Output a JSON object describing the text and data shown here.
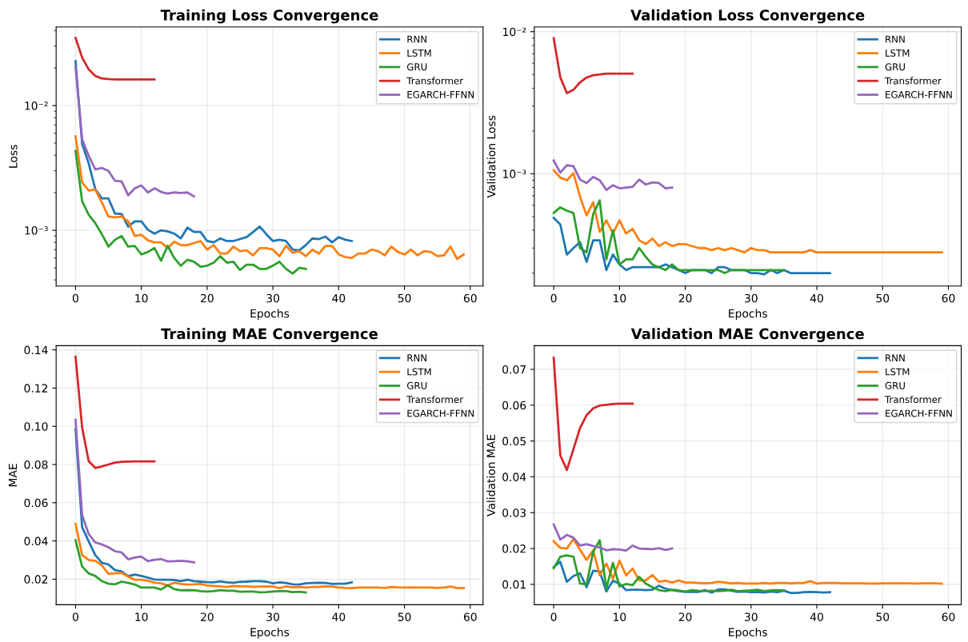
{
  "chart_data": [
    {
      "type": "line",
      "title": "Training Loss Convergence",
      "xlabel": "Epochs",
      "ylabel": "Loss",
      "log": true,
      "grid": true,
      "legend": "top right",
      "xlim": [
        -2.95,
        61.95
      ],
      "xticks": [
        0,
        10,
        20,
        30,
        40,
        50,
        60
      ],
      "ylim": [
        0.000357,
        0.0427
      ],
      "yticks": [
        {
          "value": 0.001,
          "label": "10⁻³"
        },
        {
          "value": 0.01,
          "label": "10⁻²"
        }
      ],
      "series": [
        {
          "name": "RNN",
          "color": "#1f77b4",
          "x": [
            0,
            1,
            2,
            3,
            4,
            5,
            6,
            7,
            8,
            9,
            10,
            11,
            12,
            13,
            14,
            15,
            16,
            17,
            18,
            19,
            20,
            21,
            22,
            23,
            24,
            25,
            26,
            27,
            28,
            29,
            30,
            31,
            32,
            33,
            34,
            35,
            36,
            37,
            38,
            39,
            40,
            41,
            42
          ],
          "values": [
            0.0227,
            0.00493,
            0.00344,
            0.00214,
            0.0018,
            0.0018,
            0.00136,
            0.00135,
            0.00107,
            0.00118,
            0.00118,
            0.00101,
            0.00094,
            0.001,
            0.00098,
            0.00094,
            0.00086,
            0.00105,
            0.00097,
            0.00097,
            0.00082,
            0.0008,
            0.00086,
            0.00082,
            0.00082,
            0.00085,
            0.00088,
            0.00097,
            0.00107,
            0.00093,
            0.00082,
            0.00084,
            0.00082,
            0.0007,
            0.00069,
            0.00076,
            0.00086,
            0.00085,
            0.00089,
            0.0008,
            0.00088,
            0.00084,
            0.00082
          ]
        },
        {
          "name": "LSTM",
          "color": "#ff7f0e",
          "x": [
            0,
            1,
            2,
            3,
            4,
            5,
            6,
            7,
            8,
            9,
            10,
            11,
            12,
            13,
            14,
            15,
            16,
            17,
            18,
            19,
            20,
            21,
            22,
            23,
            24,
            25,
            26,
            27,
            28,
            29,
            30,
            31,
            32,
            33,
            34,
            35,
            36,
            37,
            38,
            39,
            40,
            41,
            42,
            43,
            44,
            45,
            46,
            47,
            48,
            49,
            50,
            51,
            52,
            53,
            54,
            55,
            56,
            57,
            58,
            59
          ],
          "values": [
            0.00567,
            0.00242,
            0.00208,
            0.00212,
            0.00167,
            0.00129,
            0.00127,
            0.00129,
            0.00118,
            0.0009,
            0.00092,
            0.00083,
            0.0008,
            0.0008,
            0.00072,
            0.00081,
            0.00076,
            0.00076,
            0.00079,
            0.00082,
            0.0007,
            0.00076,
            0.00065,
            0.00065,
            0.00074,
            0.00068,
            0.00069,
            0.00063,
            0.00072,
            0.00072,
            0.0007,
            0.00062,
            0.00075,
            0.00066,
            0.00068,
            0.00062,
            0.0007,
            0.00065,
            0.00075,
            0.00075,
            0.00064,
            0.00061,
            0.0006,
            0.00065,
            0.00065,
            0.0007,
            0.00068,
            0.00063,
            0.00074,
            0.00067,
            0.00064,
            0.0007,
            0.00063,
            0.00068,
            0.00067,
            0.00062,
            0.00063,
            0.00074,
            0.00059,
            0.00064
          ]
        },
        {
          "name": "GRU",
          "color": "#2ca02c",
          "x": [
            0,
            1,
            2,
            3,
            4,
            5,
            6,
            7,
            8,
            9,
            10,
            11,
            12,
            13,
            14,
            15,
            16,
            17,
            18,
            19,
            20,
            21,
            22,
            23,
            24,
            25,
            26,
            27,
            28,
            29,
            30,
            31,
            32,
            33,
            34,
            35
          ],
          "values": [
            0.00434,
            0.00171,
            0.00133,
            0.00114,
            0.00093,
            0.00074,
            0.00084,
            0.0009,
            0.00074,
            0.00075,
            0.00064,
            0.00067,
            0.00072,
            0.00057,
            0.00075,
            0.0006,
            0.00052,
            0.00058,
            0.00056,
            0.00051,
            0.00052,
            0.00055,
            0.00062,
            0.00055,
            0.00056,
            0.00048,
            0.00053,
            0.00053,
            0.00049,
            0.00049,
            0.00052,
            0.00056,
            0.00049,
            0.00045,
            0.0005,
            0.00049
          ]
        },
        {
          "name": "Transformer",
          "color": "#d62728",
          "x": [
            0,
            1,
            2,
            3,
            4,
            5,
            6,
            7,
            8,
            9,
            10,
            11,
            12
          ],
          "values": [
            0.0349,
            0.0243,
            0.0195,
            0.0173,
            0.0165,
            0.0163,
            0.0162,
            0.0162,
            0.0162,
            0.0162,
            0.0162,
            0.0162,
            0.0162
          ]
        },
        {
          "name": "EGARCH-FFNN",
          "color": "#9467bd",
          "x": [
            0,
            1,
            2,
            3,
            4,
            5,
            6,
            7,
            8,
            9,
            10,
            11,
            12,
            13,
            14,
            15,
            16,
            17,
            18
          ],
          "values": [
            0.0204,
            0.00536,
            0.00396,
            0.00308,
            0.00316,
            0.00299,
            0.00249,
            0.00247,
            0.00191,
            0.00217,
            0.00229,
            0.00201,
            0.00217,
            0.00203,
            0.00197,
            0.00201,
            0.00199,
            0.00201,
            0.00187
          ]
        }
      ]
    },
    {
      "type": "line",
      "title": "Validation Loss Convergence",
      "xlabel": "Epochs",
      "ylabel": "Validation Loss",
      "log": true,
      "grid": true,
      "legend": "top right",
      "xlim": [
        -2.95,
        61.95
      ],
      "xticks": [
        0,
        10,
        20,
        30,
        40,
        50,
        60
      ],
      "ylim": [
        0.000162,
        0.0108
      ],
      "yticks": [
        {
          "value": 0.001,
          "label": "10⁻³"
        },
        {
          "value": 0.01,
          "label": "10⁻²"
        }
      ],
      "series": [
        {
          "name": "RNN",
          "color": "#1f77b4",
          "x": [
            0,
            1,
            2,
            3,
            4,
            5,
            6,
            7,
            8,
            9,
            10,
            11,
            12,
            13,
            14,
            15,
            16,
            17,
            18,
            19,
            20,
            21,
            22,
            23,
            24,
            25,
            26,
            27,
            28,
            29,
            30,
            31,
            32,
            33,
            34,
            35,
            36,
            37,
            38,
            39,
            40,
            41,
            42
          ],
          "values": [
            0.00049,
            0.00044,
            0.00027,
            0.0003,
            0.00033,
            0.00024,
            0.00034,
            0.00034,
            0.00021,
            0.00027,
            0.00023,
            0.00021,
            0.00022,
            0.00022,
            0.00022,
            0.00022,
            0.00022,
            0.00023,
            0.00022,
            0.00021,
            0.0002,
            0.00021,
            0.00021,
            0.00021,
            0.0002,
            0.00022,
            0.00022,
            0.00021,
            0.00021,
            0.00021,
            0.0002,
            0.0002,
            0.000196,
            0.00021,
            0.0002,
            0.00021,
            0.0002,
            0.0002,
            0.0002,
            0.0002,
            0.0002,
            0.0002,
            0.0002
          ]
        },
        {
          "name": "LSTM",
          "color": "#ff7f0e",
          "x": [
            0,
            1,
            2,
            3,
            4,
            5,
            6,
            7,
            8,
            9,
            10,
            11,
            12,
            13,
            14,
            15,
            16,
            17,
            18,
            19,
            20,
            21,
            22,
            23,
            24,
            25,
            26,
            27,
            28,
            29,
            30,
            31,
            32,
            33,
            34,
            35,
            36,
            37,
            38,
            39,
            40,
            41,
            42,
            43,
            44,
            45,
            46,
            47,
            48,
            49,
            50,
            51,
            52,
            53,
            54,
            55,
            56,
            57,
            58,
            59
          ],
          "values": [
            0.00106,
            0.00094,
            0.0009,
            0.00101,
            0.00069,
            0.00051,
            0.00063,
            0.00039,
            0.00047,
            0.00038,
            0.00047,
            0.00038,
            0.00041,
            0.00034,
            0.00032,
            0.00035,
            0.00031,
            0.00033,
            0.00031,
            0.00032,
            0.00032,
            0.00031,
            0.0003,
            0.0003,
            0.00029,
            0.0003,
            0.00029,
            0.0003,
            0.00029,
            0.00028,
            0.0003,
            0.00029,
            0.00029,
            0.00028,
            0.00028,
            0.00028,
            0.00028,
            0.00028,
            0.00028,
            0.00029,
            0.00028,
            0.00028,
            0.00028,
            0.00028,
            0.00028,
            0.00028,
            0.00028,
            0.00028,
            0.00028,
            0.00028,
            0.00028,
            0.00028,
            0.00028,
            0.00028,
            0.00028,
            0.00028,
            0.00028,
            0.00028,
            0.00028,
            0.00028
          ]
        },
        {
          "name": "GRU",
          "color": "#2ca02c",
          "x": [
            0,
            1,
            2,
            3,
            4,
            5,
            6,
            7,
            8,
            9,
            10,
            11,
            12,
            13,
            14,
            15,
            16,
            17,
            18,
            19,
            20,
            21,
            22,
            23,
            24,
            25,
            26,
            27,
            28,
            29,
            30,
            31,
            32,
            33,
            34,
            35
          ],
          "values": [
            0.00053,
            0.00058,
            0.00055,
            0.00053,
            0.0003,
            0.00028,
            0.00052,
            0.00065,
            0.00025,
            0.0004,
            0.00023,
            0.00025,
            0.00025,
            0.0003,
            0.00026,
            0.00023,
            0.00022,
            0.00021,
            0.00023,
            0.00021,
            0.00021,
            0.00021,
            0.00021,
            0.00021,
            0.00021,
            0.00021,
            0.0002,
            0.00021,
            0.00021,
            0.00021,
            0.00021,
            0.00021,
            0.00021,
            0.00021,
            0.00021,
            0.00021
          ]
        },
        {
          "name": "Transformer",
          "color": "#d62728",
          "x": [
            0,
            1,
            2,
            3,
            4,
            5,
            6,
            7,
            8,
            9,
            10,
            11,
            12
          ],
          "values": [
            0.009,
            0.00478,
            0.0037,
            0.0039,
            0.0044,
            0.00476,
            0.00494,
            0.005,
            0.00506,
            0.00506,
            0.00506,
            0.00506,
            0.00506
          ]
        },
        {
          "name": "EGARCH-FFNN",
          "color": "#9467bd",
          "x": [
            0,
            1,
            2,
            3,
            4,
            5,
            6,
            7,
            8,
            9,
            10,
            11,
            12,
            13,
            14,
            15,
            16,
            17,
            18
          ],
          "values": [
            0.00124,
            0.00102,
            0.00115,
            0.00113,
            0.00091,
            0.00086,
            0.00095,
            0.0009,
            0.00077,
            0.00083,
            0.00079,
            0.0008,
            0.00081,
            0.00091,
            0.00084,
            0.00087,
            0.00086,
            0.00079,
            0.0008
          ]
        }
      ]
    },
    {
      "type": "line",
      "title": "Training MAE Convergence",
      "xlabel": "Epochs",
      "ylabel": "MAE",
      "grid": true,
      "legend": "top right",
      "xlim": [
        -2.95,
        61.95
      ],
      "xticks": [
        0,
        10,
        20,
        30,
        40,
        50,
        60
      ],
      "ylim": [
        0.0066,
        0.1422
      ],
      "yticks": [
        {
          "value": 0.02,
          "label": "0.02"
        },
        {
          "value": 0.04,
          "label": "0.04"
        },
        {
          "value": 0.06,
          "label": "0.06"
        },
        {
          "value": 0.08,
          "label": "0.08"
        },
        {
          "value": 0.1,
          "label": "0.10"
        },
        {
          "value": 0.12,
          "label": "0.12"
        },
        {
          "value": 0.14,
          "label": "0.14"
        }
      ],
      "series": [
        {
          "name": "RNN",
          "color": "#1f77b4",
          "x": [
            0,
            1,
            2,
            3,
            4,
            5,
            6,
            7,
            8,
            9,
            10,
            11,
            12,
            13,
            14,
            15,
            16,
            17,
            18,
            19,
            20,
            21,
            22,
            23,
            24,
            25,
            26,
            27,
            28,
            29,
            30,
            31,
            32,
            33,
            34,
            35,
            36,
            37,
            38,
            39,
            40,
            41,
            42
          ],
          "values": [
            0.0986,
            0.0472,
            0.0398,
            0.0326,
            0.0286,
            0.0277,
            0.0247,
            0.0241,
            0.0216,
            0.0224,
            0.0217,
            0.0208,
            0.0198,
            0.0197,
            0.0197,
            0.0196,
            0.019,
            0.0197,
            0.019,
            0.0187,
            0.0184,
            0.0183,
            0.0189,
            0.0183,
            0.0181,
            0.0186,
            0.0187,
            0.019,
            0.019,
            0.0187,
            0.0178,
            0.0183,
            0.018,
            0.0173,
            0.0172,
            0.0178,
            0.018,
            0.0181,
            0.018,
            0.0175,
            0.0176,
            0.0176,
            0.0183
          ]
        },
        {
          "name": "LSTM",
          "color": "#ff7f0e",
          "x": [
            0,
            1,
            2,
            3,
            4,
            5,
            6,
            7,
            8,
            9,
            10,
            11,
            12,
            13,
            14,
            15,
            16,
            17,
            18,
            19,
            20,
            21,
            22,
            23,
            24,
            25,
            26,
            27,
            28,
            29,
            30,
            31,
            32,
            33,
            34,
            35,
            36,
            37,
            38,
            39,
            40,
            41,
            42,
            43,
            44,
            45,
            46,
            47,
            48,
            49,
            50,
            51,
            52,
            53,
            54,
            55,
            56,
            57,
            58,
            59
          ],
          "values": [
            0.0489,
            0.0326,
            0.0301,
            0.0296,
            0.0272,
            0.0228,
            0.023,
            0.0233,
            0.0213,
            0.0197,
            0.0197,
            0.0192,
            0.0181,
            0.0178,
            0.0168,
            0.0181,
            0.0175,
            0.0172,
            0.0173,
            0.0175,
            0.0167,
            0.0165,
            0.0162,
            0.0159,
            0.0165,
            0.0162,
            0.0162,
            0.0159,
            0.0161,
            0.0161,
            0.0161,
            0.0153,
            0.0162,
            0.0157,
            0.0159,
            0.0156,
            0.0159,
            0.0159,
            0.0162,
            0.0161,
            0.0156,
            0.0154,
            0.0153,
            0.0156,
            0.0156,
            0.0156,
            0.0156,
            0.0154,
            0.0159,
            0.0157,
            0.0156,
            0.0157,
            0.0156,
            0.0156,
            0.0156,
            0.0154,
            0.0156,
            0.0161,
            0.0153,
            0.0154
          ]
        },
        {
          "name": "GRU",
          "color": "#2ca02c",
          "x": [
            0,
            1,
            2,
            3,
            4,
            5,
            6,
            7,
            8,
            9,
            10,
            11,
            12,
            13,
            14,
            15,
            16,
            17,
            18,
            19,
            20,
            21,
            22,
            23,
            24,
            25,
            26,
            27,
            28,
            29,
            30,
            31,
            32,
            33,
            34,
            35
          ],
          "values": [
            0.0404,
            0.0266,
            0.023,
            0.0217,
            0.019,
            0.0176,
            0.0173,
            0.0187,
            0.018,
            0.0172,
            0.0156,
            0.0156,
            0.0156,
            0.0146,
            0.0168,
            0.0148,
            0.0142,
            0.0142,
            0.0143,
            0.0137,
            0.0135,
            0.0137,
            0.0143,
            0.0139,
            0.0139,
            0.0134,
            0.0135,
            0.0135,
            0.0131,
            0.0132,
            0.0135,
            0.0137,
            0.0137,
            0.0132,
            0.0134,
            0.0131
          ]
        },
        {
          "name": "Transformer",
          "color": "#d62728",
          "x": [
            0,
            1,
            2,
            3,
            4,
            5,
            6,
            7,
            8,
            9,
            10,
            11,
            12
          ],
          "values": [
            0.1364,
            0.0994,
            0.0818,
            0.0782,
            0.079,
            0.08,
            0.081,
            0.0814,
            0.0815,
            0.0816,
            0.0816,
            0.0816,
            0.0816
          ]
        },
        {
          "name": "EGARCH-FFNN",
          "color": "#9467bd",
          "x": [
            0,
            1,
            2,
            3,
            4,
            5,
            6,
            7,
            8,
            9,
            10,
            11,
            12,
            13,
            14,
            15,
            16,
            17,
            18
          ],
          "values": [
            0.1034,
            0.0535,
            0.0436,
            0.0392,
            0.0382,
            0.0367,
            0.0346,
            0.034,
            0.0304,
            0.0313,
            0.0318,
            0.0294,
            0.0302,
            0.0305,
            0.0293,
            0.0294,
            0.0296,
            0.0293,
            0.0288
          ]
        }
      ]
    },
    {
      "type": "line",
      "title": "Validation MAE Convergence",
      "xlabel": "Epochs",
      "ylabel": "Validation MAE",
      "grid": true,
      "legend": "top right",
      "xlim": [
        -2.95,
        61.95
      ],
      "xticks": [
        0,
        10,
        20,
        30,
        40,
        50,
        60
      ],
      "ylim": [
        0.0043,
        0.0766
      ],
      "yticks": [
        {
          "value": 0.01,
          "label": "0.01"
        },
        {
          "value": 0.02,
          "label": "0.02"
        },
        {
          "value": 0.03,
          "label": "0.03"
        },
        {
          "value": 0.04,
          "label": "0.04"
        },
        {
          "value": 0.05,
          "label": "0.05"
        },
        {
          "value": 0.06,
          "label": "0.06"
        },
        {
          "value": 0.07,
          "label": "0.07"
        }
      ],
      "series": [
        {
          "name": "RNN",
          "color": "#1f77b4",
          "x": [
            0,
            1,
            2,
            3,
            4,
            5,
            6,
            7,
            8,
            9,
            10,
            11,
            12,
            13,
            14,
            15,
            16,
            17,
            18,
            19,
            20,
            21,
            22,
            23,
            24,
            25,
            26,
            27,
            28,
            29,
            30,
            31,
            32,
            33,
            34,
            35,
            36,
            37,
            38,
            39,
            40,
            41,
            42
          ],
          "values": [
            0.0148,
            0.0163,
            0.0107,
            0.0123,
            0.0131,
            0.0092,
            0.0138,
            0.0136,
            0.008,
            0.011,
            0.0102,
            0.0084,
            0.0085,
            0.0085,
            0.0084,
            0.0085,
            0.0096,
            0.0088,
            0.0084,
            0.0081,
            0.0079,
            0.0079,
            0.0079,
            0.0084,
            0.0077,
            0.0086,
            0.0086,
            0.0082,
            0.0079,
            0.008,
            0.0078,
            0.0079,
            0.0077,
            0.008,
            0.0078,
            0.0082,
            0.0076,
            0.0076,
            0.0078,
            0.0079,
            0.0078,
            0.0077,
            0.0078
          ]
        },
        {
          "name": "LSTM",
          "color": "#ff7f0e",
          "x": [
            0,
            1,
            2,
            3,
            4,
            5,
            6,
            7,
            8,
            9,
            10,
            11,
            12,
            13,
            14,
            15,
            16,
            17,
            18,
            19,
            20,
            21,
            22,
            23,
            24,
            25,
            26,
            27,
            28,
            29,
            30,
            31,
            32,
            33,
            34,
            35,
            36,
            37,
            38,
            39,
            40,
            41,
            42,
            43,
            44,
            45,
            46,
            47,
            48,
            49,
            50,
            51,
            52,
            53,
            54,
            55,
            56,
            57,
            58,
            59
          ],
          "values": [
            0.022,
            0.0202,
            0.02,
            0.0226,
            0.0197,
            0.0168,
            0.0195,
            0.0125,
            0.0158,
            0.0116,
            0.0166,
            0.0125,
            0.0144,
            0.0111,
            0.0111,
            0.0126,
            0.0107,
            0.011,
            0.0105,
            0.0111,
            0.0105,
            0.0105,
            0.0104,
            0.0103,
            0.0104,
            0.0107,
            0.0105,
            0.0103,
            0.0104,
            0.0102,
            0.0102,
            0.0102,
            0.0104,
            0.0102,
            0.0104,
            0.0104,
            0.0103,
            0.0104,
            0.0104,
            0.0109,
            0.0102,
            0.0104,
            0.0104,
            0.0104,
            0.0103,
            0.0103,
            0.0103,
            0.0103,
            0.0102,
            0.0102,
            0.0103,
            0.0103,
            0.0103,
            0.0103,
            0.0103,
            0.0102,
            0.0103,
            0.0103,
            0.0103,
            0.0102
          ]
        },
        {
          "name": "GRU",
          "color": "#2ca02c",
          "x": [
            0,
            1,
            2,
            3,
            4,
            5,
            6,
            7,
            8,
            9,
            10,
            11,
            12,
            13,
            14,
            15,
            16,
            17,
            18,
            19,
            20,
            21,
            22,
            23,
            24,
            25,
            26,
            27,
            28,
            29,
            30,
            31,
            32,
            33,
            34,
            35
          ],
          "values": [
            0.0145,
            0.0177,
            0.0181,
            0.0177,
            0.0102,
            0.01,
            0.0191,
            0.0223,
            0.0088,
            0.016,
            0.0094,
            0.0101,
            0.0098,
            0.0121,
            0.0102,
            0.0092,
            0.0084,
            0.0081,
            0.0085,
            0.0083,
            0.008,
            0.0084,
            0.0082,
            0.0081,
            0.0082,
            0.0081,
            0.0082,
            0.0085,
            0.0081,
            0.0082,
            0.0083,
            0.0085,
            0.0081,
            0.0083,
            0.0084,
            0.0083
          ]
        },
        {
          "name": "Transformer",
          "color": "#d62728",
          "x": [
            0,
            1,
            2,
            3,
            4,
            5,
            6,
            7,
            8,
            9,
            10,
            11,
            12
          ],
          "values": [
            0.0732,
            0.046,
            0.0419,
            0.0477,
            0.0536,
            0.0572,
            0.0591,
            0.0599,
            0.0601,
            0.0603,
            0.0604,
            0.0604,
            0.0604
          ]
        },
        {
          "name": "EGARCH-FFNN",
          "color": "#9467bd",
          "x": [
            0,
            1,
            2,
            3,
            4,
            5,
            6,
            7,
            8,
            9,
            10,
            11,
            12,
            13,
            14,
            15,
            16,
            17,
            18
          ],
          "values": [
            0.0267,
            0.0225,
            0.0238,
            0.023,
            0.0208,
            0.0212,
            0.0207,
            0.0203,
            0.0195,
            0.0198,
            0.0197,
            0.0194,
            0.0208,
            0.02,
            0.0199,
            0.0198,
            0.0201,
            0.0196,
            0.02
          ]
        }
      ]
    }
  ]
}
